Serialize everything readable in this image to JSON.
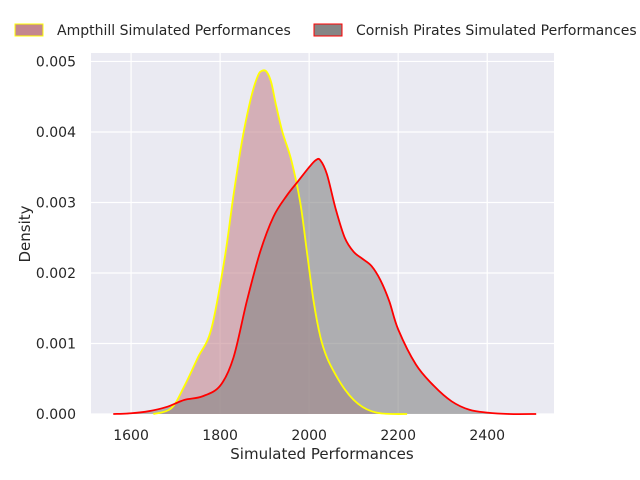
{
  "chart_data": {
    "type": "area",
    "xlabel": "Simulated Performances",
    "ylabel": "Density",
    "xlim": [
      1510,
      2550
    ],
    "ylim": [
      0,
      0.00512
    ],
    "x_ticks": [
      1600,
      1800,
      2000,
      2200,
      2400
    ],
    "x_tick_labels": [
      "1600",
      "1800",
      "2000",
      "2200",
      "2400"
    ],
    "y_ticks": [
      0.0,
      0.001,
      0.002,
      0.003,
      0.004,
      0.005
    ],
    "y_tick_labels": [
      "0.000",
      "0.001",
      "0.002",
      "0.003",
      "0.004",
      "0.005"
    ],
    "grid": true,
    "legend_position": "top",
    "series": [
      {
        "name": "Ampthill Simulated Performances",
        "fill_color": "#c4878f",
        "line_color": "#ffff00",
        "x": [
          1650,
          1690,
          1720,
          1750,
          1780,
          1810,
          1830,
          1850,
          1870,
          1885,
          1895,
          1905,
          1915,
          1925,
          1940,
          1960,
          1980,
          1995,
          2010,
          2025,
          2040,
          2060,
          2080,
          2100,
          2120,
          2140,
          2160,
          2190,
          2220
        ],
        "values": [
          0.0,
          8e-05,
          0.0004,
          0.0008,
          0.0012,
          0.0022,
          0.0031,
          0.0039,
          0.0045,
          0.0048,
          0.00487,
          0.00485,
          0.0047,
          0.0044,
          0.004,
          0.0036,
          0.003,
          0.0023,
          0.0016,
          0.0011,
          0.0008,
          0.00055,
          0.00035,
          0.0002,
          0.0001,
          4e-05,
          1e-05,
          0.0,
          0.0
        ]
      },
      {
        "name": "Cornish Pirates Simulated Performances",
        "fill_color": "#868686",
        "line_color": "#ff0000",
        "x": [
          1560,
          1600,
          1640,
          1680,
          1720,
          1760,
          1800,
          1830,
          1860,
          1890,
          1920,
          1950,
          1975,
          2000,
          2015,
          2025,
          2040,
          2060,
          2080,
          2100,
          2120,
          2140,
          2160,
          2180,
          2200,
          2240,
          2280,
          2320,
          2360,
          2400,
          2450,
          2510
        ],
        "values": [
          0.0,
          1e-05,
          4e-05,
          0.0001,
          0.0002,
          0.00025,
          0.0004,
          0.0008,
          0.0016,
          0.0023,
          0.0028,
          0.0031,
          0.0033,
          0.0035,
          0.0036,
          0.0036,
          0.0034,
          0.0029,
          0.0025,
          0.0023,
          0.0022,
          0.0021,
          0.0019,
          0.0016,
          0.0012,
          0.0007,
          0.0004,
          0.00018,
          6e-05,
          2e-05,
          0.0,
          0.0
        ]
      }
    ]
  }
}
